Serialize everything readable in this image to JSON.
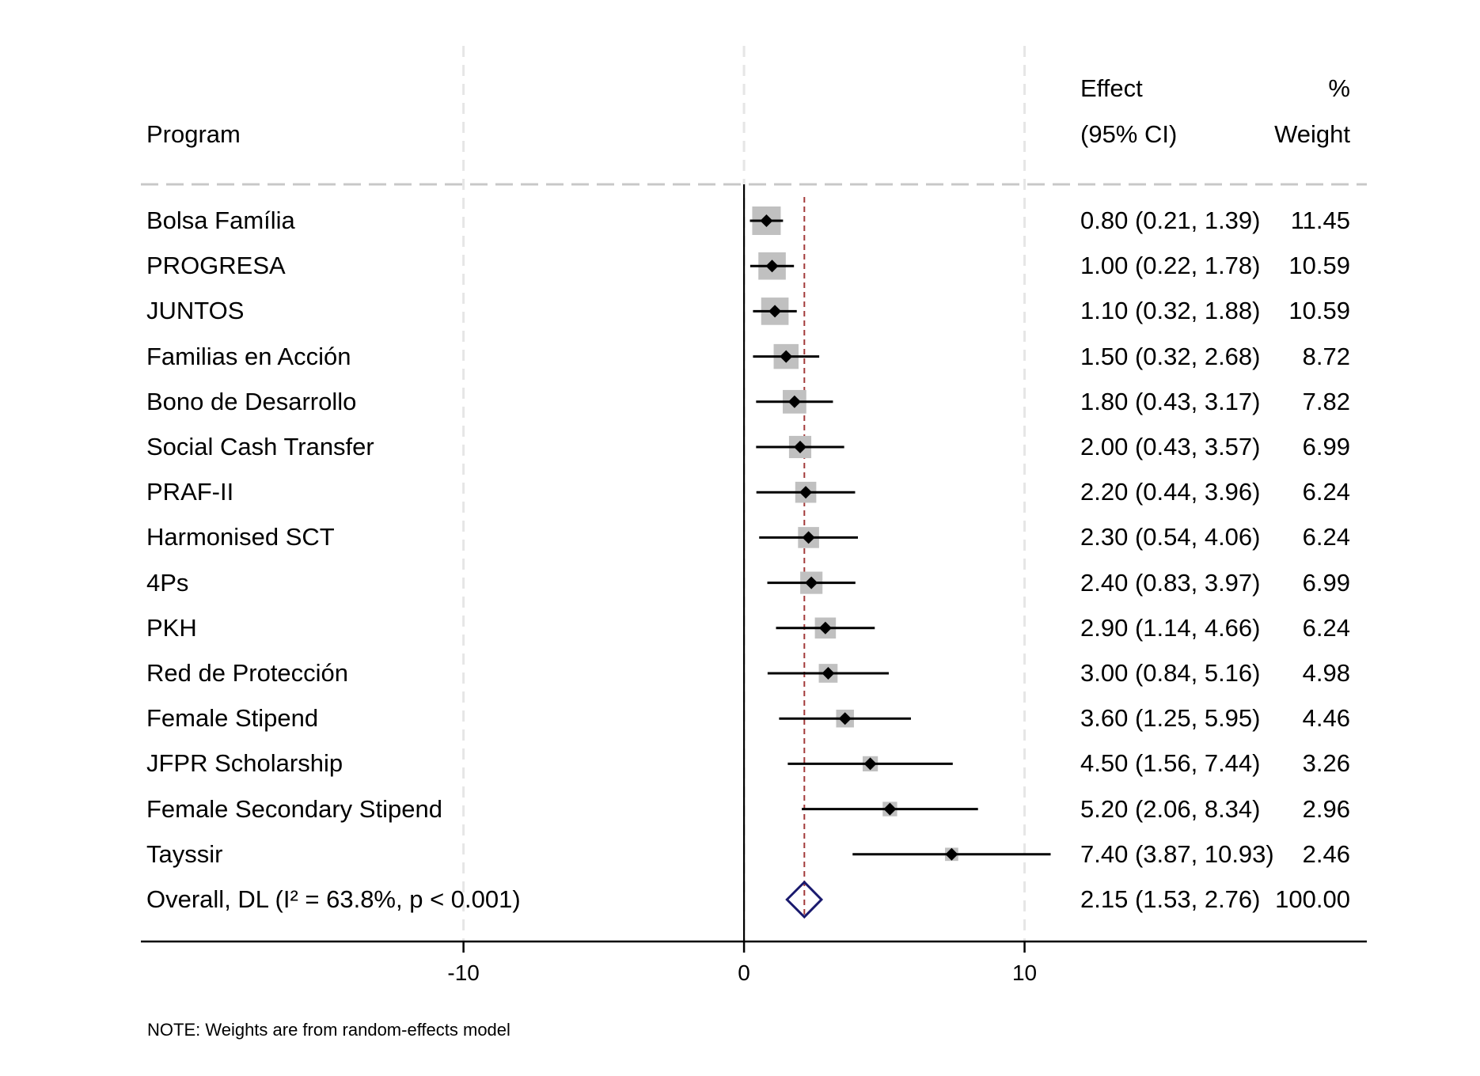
{
  "chart_data": {
    "type": "forest",
    "headers": {
      "program": "Program",
      "effect_line1": "Effect",
      "effect_line2": "(95% CI)",
      "weight_line1": "%",
      "weight_line2": "Weight"
    },
    "xlim": [
      -21.5,
      22.2
    ],
    "ticks": [
      -10,
      0,
      10
    ],
    "tick_labels": [
      "-10",
      "0",
      "10"
    ],
    "gridlines_dashed": [
      -10,
      0,
      10
    ],
    "null_line": 0,
    "overall_line": 2.15,
    "studies": [
      {
        "label": "Bolsa Família",
        "effect": 0.8,
        "lo": 0.21,
        "hi": 1.39,
        "weight": 11.45,
        "ci_text": "0.80 (0.21, 1.39)",
        "weight_text": "11.45"
      },
      {
        "label": "PROGRESA",
        "effect": 1.0,
        "lo": 0.22,
        "hi": 1.78,
        "weight": 10.59,
        "ci_text": "1.00 (0.22, 1.78)",
        "weight_text": "10.59"
      },
      {
        "label": "JUNTOS",
        "effect": 1.1,
        "lo": 0.32,
        "hi": 1.88,
        "weight": 10.59,
        "ci_text": "1.10 (0.32, 1.88)",
        "weight_text": "10.59"
      },
      {
        "label": "Familias en Acción",
        "effect": 1.5,
        "lo": 0.32,
        "hi": 2.68,
        "weight": 8.72,
        "ci_text": "1.50 (0.32, 2.68)",
        "weight_text": "8.72"
      },
      {
        "label": "Bono de Desarrollo",
        "effect": 1.8,
        "lo": 0.43,
        "hi": 3.17,
        "weight": 7.82,
        "ci_text": "1.80 (0.43, 3.17)",
        "weight_text": "7.82"
      },
      {
        "label": "Social Cash Transfer",
        "effect": 2.0,
        "lo": 0.43,
        "hi": 3.57,
        "weight": 6.99,
        "ci_text": "2.00 (0.43, 3.57)",
        "weight_text": "6.99"
      },
      {
        "label": "PRAF-II",
        "effect": 2.2,
        "lo": 0.44,
        "hi": 3.96,
        "weight": 6.24,
        "ci_text": "2.20 (0.44, 3.96)",
        "weight_text": "6.24"
      },
      {
        "label": "Harmonised SCT",
        "effect": 2.3,
        "lo": 0.54,
        "hi": 4.06,
        "weight": 6.24,
        "ci_text": "2.30 (0.54, 4.06)",
        "weight_text": "6.24"
      },
      {
        "label": "4Ps",
        "effect": 2.4,
        "lo": 0.83,
        "hi": 3.97,
        "weight": 6.99,
        "ci_text": "2.40 (0.83, 3.97)",
        "weight_text": "6.99"
      },
      {
        "label": "PKH",
        "effect": 2.9,
        "lo": 1.14,
        "hi": 4.66,
        "weight": 6.24,
        "ci_text": "2.90 (1.14, 4.66)",
        "weight_text": "6.24"
      },
      {
        "label": "Red de Protección",
        "effect": 3.0,
        "lo": 0.84,
        "hi": 5.16,
        "weight": 4.98,
        "ci_text": "3.00 (0.84, 5.16)",
        "weight_text": "4.98"
      },
      {
        "label": "Female Stipend",
        "effect": 3.6,
        "lo": 1.25,
        "hi": 5.95,
        "weight": 4.46,
        "ci_text": "3.60 (1.25, 5.95)",
        "weight_text": "4.46"
      },
      {
        "label": "JFPR Scholarship",
        "effect": 4.5,
        "lo": 1.56,
        "hi": 7.44,
        "weight": 3.26,
        "ci_text": "4.50 (1.56, 7.44)",
        "weight_text": "3.26"
      },
      {
        "label": "Female Secondary Stipend",
        "effect": 5.2,
        "lo": 2.06,
        "hi": 8.34,
        "weight": 2.96,
        "ci_text": "5.20 (2.06, 8.34)",
        "weight_text": "2.96"
      },
      {
        "label": "Tayssir",
        "effect": 7.4,
        "lo": 3.87,
        "hi": 10.93,
        "weight": 2.46,
        "ci_text": "7.40 (3.87, 10.93)",
        "weight_text": "2.46"
      }
    ],
    "overall": {
      "label": "Overall, DL (I² = 63.8%, p < 0.001)",
      "effect": 2.15,
      "lo": 1.53,
      "hi": 2.76,
      "weight": 100.0,
      "ci_text": "2.15 (1.53, 2.76)",
      "weight_text": "100.00"
    },
    "note": "NOTE: Weights are from random-effects model",
    "colors": {
      "box": "#c0c0c0",
      "point": "#000000",
      "ci_line": "#000000",
      "overall_diamond": "#1a1a6e",
      "overall_line": "#a33a3a",
      "grid": "#e6e6e6",
      "header_rule": "#c8c8c8",
      "axis": "#000000"
    }
  }
}
